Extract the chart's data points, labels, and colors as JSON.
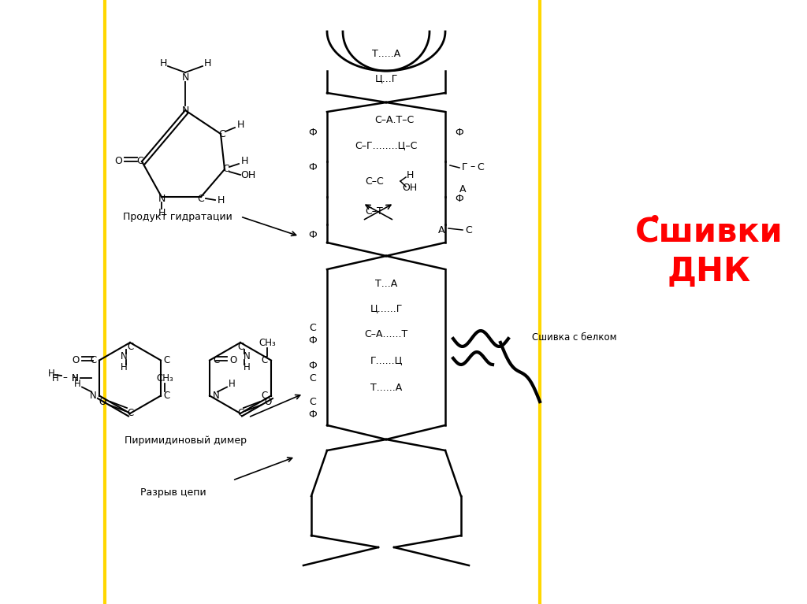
{
  "title_color": "#FF0000",
  "bg_color": "#FFFFFF",
  "left_line_color": "#FFD700",
  "label_hydration": "Продукт гидратации",
  "label_dimer": "Пиримидиновый димер",
  "label_break": "Разрыв цепи",
  "label_protein": "Сшивка с белком",
  "title_line1": "Сшивки",
  "title_line2": "ДНК",
  "bullet": "•"
}
